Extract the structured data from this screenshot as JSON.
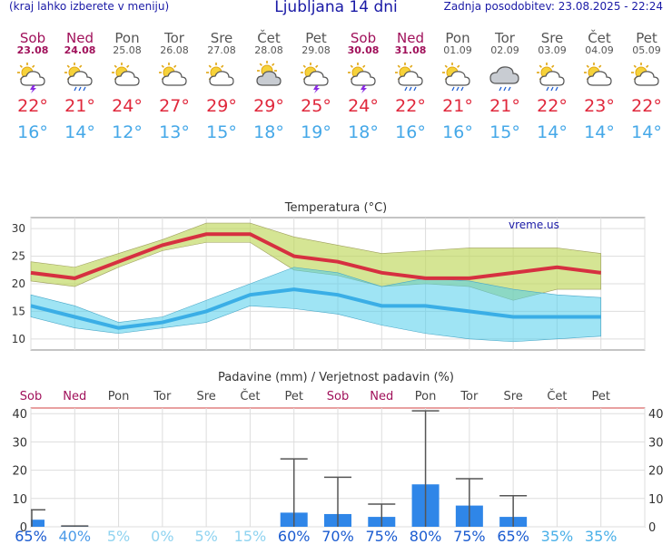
{
  "header": {
    "menu_hint": "(kraj lahko izberete v meniju)",
    "title": "Ljubljana 14 dni",
    "updated": "Zadnja posodobitev: 23.08.2025 - 22:24"
  },
  "days": [
    {
      "name": "Sob",
      "date": "23.08",
      "weekend": true,
      "icon": "sun-cloud-storm-icon",
      "tmax": "22°",
      "tmin": "16°"
    },
    {
      "name": "Ned",
      "date": "24.08",
      "weekend": true,
      "icon": "sun-cloud-rain-icon",
      "tmax": "21°",
      "tmin": "14°"
    },
    {
      "name": "Pon",
      "date": "25.08",
      "weekend": false,
      "icon": "sun-cloud-icon",
      "tmax": "24°",
      "tmin": "12°"
    },
    {
      "name": "Tor",
      "date": "26.08",
      "weekend": false,
      "icon": "sun-cloud-icon",
      "tmax": "27°",
      "tmin": "13°"
    },
    {
      "name": "Sre",
      "date": "27.08",
      "weekend": false,
      "icon": "sun-cloud-icon",
      "tmax": "29°",
      "tmin": "15°"
    },
    {
      "name": "Čet",
      "date": "28.08",
      "weekend": false,
      "icon": "partly-cloudy-icon",
      "tmax": "29°",
      "tmin": "18°"
    },
    {
      "name": "Pet",
      "date": "29.08",
      "weekend": false,
      "icon": "sun-cloud-storm-icon",
      "tmax": "25°",
      "tmin": "19°"
    },
    {
      "name": "Sob",
      "date": "30.08",
      "weekend": true,
      "icon": "sun-cloud-storm-icon",
      "tmax": "24°",
      "tmin": "18°"
    },
    {
      "name": "Ned",
      "date": "31.08",
      "weekend": true,
      "icon": "sun-cloud-rain-icon",
      "tmax": "22°",
      "tmin": "16°"
    },
    {
      "name": "Pon",
      "date": "01.09",
      "weekend": false,
      "icon": "sun-cloud-rain-icon",
      "tmax": "21°",
      "tmin": "16°"
    },
    {
      "name": "Tor",
      "date": "02.09",
      "weekend": false,
      "icon": "cloud-rain-icon",
      "tmax": "21°",
      "tmin": "15°"
    },
    {
      "name": "Sre",
      "date": "03.09",
      "weekend": false,
      "icon": "sun-cloud-rain-icon",
      "tmax": "22°",
      "tmin": "14°"
    },
    {
      "name": "Čet",
      "date": "04.09",
      "weekend": false,
      "icon": "sun-cloud-icon",
      "tmax": "23°",
      "tmin": "14°"
    },
    {
      "name": "Pet",
      "date": "05.09",
      "weekend": false,
      "icon": "sun-cloud-icon",
      "tmax": "22°",
      "tmin": "14°"
    }
  ],
  "colors": {
    "weekend": "#a0105a",
    "max_line": "#d63040",
    "min_line": "#3aaee6",
    "rain_bar": "#2f86e8"
  },
  "chart_data": [
    {
      "type": "line",
      "title": "Temperatura (°C)",
      "watermark": "vreme.us",
      "categories": [
        "23.08",
        "24.08",
        "25.08",
        "26.08",
        "27.08",
        "28.08",
        "29.08",
        "30.08",
        "31.08",
        "01.09",
        "02.09",
        "03.09",
        "04.09",
        "05.09"
      ],
      "ylim": [
        8,
        32
      ],
      "yticks": [
        10,
        15,
        20,
        25,
        30
      ],
      "grid": true,
      "series": [
        {
          "role": "tmax",
          "values": [
            22,
            21,
            24,
            27,
            29,
            29,
            25,
            24,
            22,
            21,
            21,
            22,
            23,
            22
          ]
        },
        {
          "role": "tmax_upper",
          "values": [
            24,
            23,
            25.5,
            28,
            31,
            31,
            28.5,
            27,
            25.5,
            26,
            26.5,
            26.5,
            26.5,
            25.5
          ]
        },
        {
          "role": "tmax_lower",
          "values": [
            20.5,
            19.5,
            23,
            26,
            27.5,
            27.5,
            22.5,
            21.5,
            19.5,
            20,
            19.5,
            17,
            19,
            19
          ]
        },
        {
          "role": "tmin",
          "values": [
            16,
            14,
            12,
            13,
            15,
            18,
            19,
            18,
            16,
            16,
            15,
            14,
            14,
            14
          ]
        },
        {
          "role": "tmin_upper",
          "values": [
            18,
            16,
            13,
            14,
            17,
            20,
            23,
            22,
            19.5,
            21,
            20.5,
            19,
            18,
            17.5
          ]
        },
        {
          "role": "tmin_lower",
          "values": [
            14,
            12,
            11,
            12,
            13,
            16,
            15.5,
            14.5,
            12.5,
            11,
            10,
            9.5,
            10,
            10.5
          ]
        }
      ]
    },
    {
      "type": "bar",
      "title": "Padavine (mm) / Verjetnost padavin (%)",
      "categories": [
        "Sob",
        "Ned",
        "Pon",
        "Tor",
        "Sre",
        "Čet",
        "Pet",
        "Sob",
        "Ned",
        "Pon",
        "Tor",
        "Sre",
        "Čet",
        "Pet"
      ],
      "ylim": [
        0,
        42
      ],
      "yticks": [
        0,
        10,
        20,
        30,
        40
      ],
      "values": [
        2.5,
        0.2,
        0,
        0,
        0,
        0,
        5,
        4.5,
        3.5,
        15,
        7.5,
        3.5,
        0,
        0
      ],
      "error_high": [
        6,
        0.3,
        0,
        0,
        0,
        0,
        24,
        17.5,
        8,
        41,
        17,
        11,
        0,
        0
      ],
      "probabilities": [
        "65%",
        "40%",
        "5%",
        "0%",
        "5%",
        "15%",
        "60%",
        "70%",
        "75%",
        "80%",
        "75%",
        "65%",
        "35%",
        "35%"
      ],
      "grid": true
    }
  ]
}
